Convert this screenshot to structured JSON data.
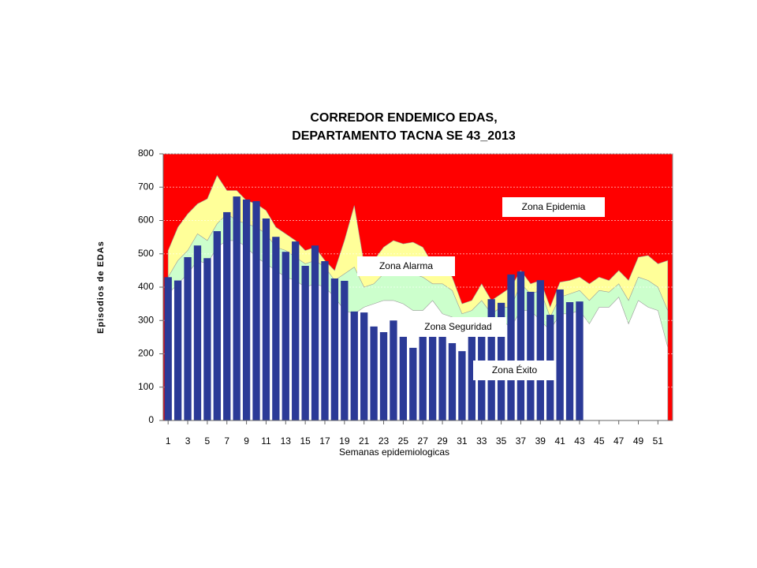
{
  "chart_data": {
    "type": "endemic-corridor",
    "title": [
      "CORREDOR ENDEMICO EDAS,",
      "DEPARTAMENTO TACNA SE 43_2013"
    ],
    "x_label": "Semanas epidemiologicas",
    "y_label": "Episodios de EDAs",
    "x": [
      1,
      2,
      3,
      4,
      5,
      6,
      7,
      8,
      9,
      10,
      11,
      12,
      13,
      14,
      15,
      16,
      17,
      18,
      19,
      20,
      21,
      22,
      23,
      24,
      25,
      26,
      27,
      28,
      29,
      30,
      31,
      32,
      33,
      34,
      35,
      36,
      37,
      38,
      39,
      40,
      41,
      42,
      43,
      44,
      45,
      46,
      47,
      48,
      49,
      50,
      51,
      52
    ],
    "xlim": [
      0.5,
      52.5
    ],
    "xticks": [
      1,
      3,
      5,
      7,
      9,
      11,
      13,
      15,
      17,
      19,
      21,
      23,
      25,
      27,
      29,
      31,
      33,
      35,
      37,
      39,
      41,
      43,
      45,
      47,
      49,
      51
    ],
    "ylim": [
      0,
      800
    ],
    "yticks": [
      0,
      100,
      200,
      300,
      400,
      500,
      600,
      700,
      800
    ],
    "grid": true,
    "epidemic_zone": {
      "name": "Zona Epidemia",
      "color": "#ff0000"
    },
    "series": [
      {
        "name": "Zona Alarma",
        "color": "#ffff99",
        "values": [
          510,
          580,
          620,
          650,
          665,
          735,
          690,
          690,
          660,
          650,
          630,
          580,
          560,
          540,
          510,
          520,
          480,
          450,
          540,
          645,
          470,
          480,
          520,
          540,
          530,
          535,
          520,
          470,
          470,
          430,
          350,
          360,
          410,
          360,
          380,
          400,
          450,
          410,
          420,
          340,
          415,
          420,
          430,
          410,
          430,
          420,
          450,
          420,
          490,
          495,
          470,
          480
        ]
      },
      {
        "name": "Zona Seguridad",
        "color": "#ccffcc",
        "values": [
          430,
          480,
          510,
          560,
          540,
          590,
          620,
          600,
          590,
          580,
          560,
          520,
          510,
          490,
          470,
          480,
          460,
          420,
          440,
          460,
          400,
          410,
          440,
          460,
          450,
          440,
          430,
          410,
          410,
          390,
          320,
          330,
          360,
          320,
          340,
          340,
          410,
          380,
          390,
          310,
          370,
          380,
          390,
          360,
          390,
          385,
          410,
          360,
          430,
          420,
          400,
          330
        ]
      },
      {
        "name": "Zona Éxito",
        "color": "#ffffff",
        "values": [
          380,
          410,
          440,
          480,
          470,
          520,
          540,
          540,
          520,
          490,
          470,
          450,
          430,
          420,
          400,
          410,
          400,
          370,
          330,
          320,
          340,
          350,
          360,
          360,
          350,
          330,
          330,
          360,
          320,
          310,
          270,
          290,
          300,
          270,
          300,
          280,
          330,
          330,
          300,
          270,
          320,
          320,
          330,
          290,
          340,
          340,
          370,
          290,
          360,
          340,
          330,
          220
        ]
      }
    ],
    "cases": {
      "color": "#2b3a97",
      "values": [
        430,
        420,
        490,
        525,
        487,
        568,
        625,
        672,
        663,
        658,
        606,
        551,
        506,
        537,
        464,
        525,
        478,
        426,
        419,
        327,
        324,
        282,
        265,
        300,
        251,
        218,
        256,
        279,
        253,
        232,
        208,
        260,
        291,
        364,
        353,
        438,
        447,
        386,
        421,
        317,
        393,
        355,
        357
      ]
    }
  }
}
